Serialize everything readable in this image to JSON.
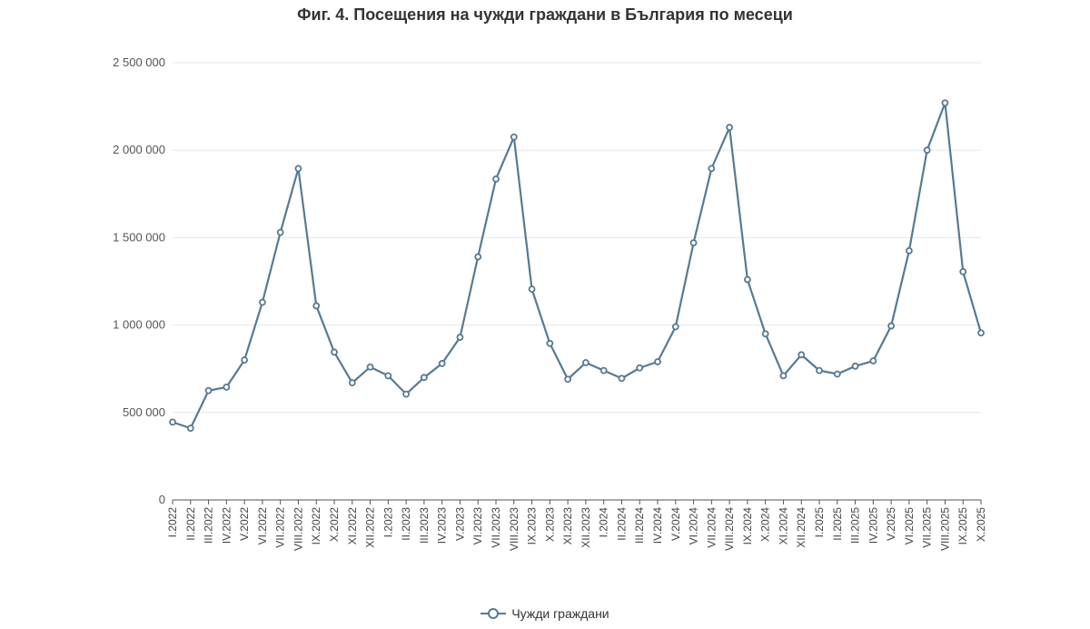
{
  "title": "Фиг. 4. Посещения на чужди граждани в България по месеци",
  "colors": {
    "series": "#577a93",
    "grid": "#e3e7ec",
    "axis": "#555555"
  },
  "chart_data": {
    "type": "line",
    "title": "Фиг. 4. Посещения на чужди граждани в България по месеци",
    "xlabel": "",
    "ylabel": "",
    "ylim": [
      0,
      2500000
    ],
    "yticks": [
      0,
      500000,
      1000000,
      1500000,
      2000000,
      2500000
    ],
    "ytick_labels": [
      "0",
      "500 000",
      "1 000 000",
      "1 500 000",
      "2 000 000",
      "2 500 000"
    ],
    "grid": true,
    "legend_position": "bottom-center",
    "categories": [
      "I.2022",
      "II.2022",
      "III.2022",
      "IV.2022",
      "V.2022",
      "VI.2022",
      "VII.2022",
      "VIII.2022",
      "IX.2022",
      "X.2022",
      "XI.2022",
      "XII.2022",
      "I.2023",
      "II.2023",
      "III.2023",
      "IV.2023",
      "V.2023",
      "VI.2023",
      "VII.2023",
      "VIII.2023",
      "IX.2023",
      "X.2023",
      "XI.2023",
      "XII.2023",
      "I.2024",
      "II.2024",
      "III.2024",
      "IV.2024",
      "V.2024",
      "VI.2024",
      "VII.2024",
      "VIII.2024",
      "IX.2024",
      "X.2024",
      "XI.2024",
      "XII.2024",
      "I.2025",
      "II.2025",
      "III.2025",
      "IV.2025",
      "V.2025",
      "VI.2025",
      "VII.2025",
      "VIII.2025",
      "IX.2025",
      "X.2025"
    ],
    "series": [
      {
        "name": "Чужди граждани",
        "values": [
          445000,
          410000,
          625000,
          645000,
          800000,
          1130000,
          1530000,
          1895000,
          1110000,
          845000,
          670000,
          760000,
          710000,
          605000,
          700000,
          780000,
          930000,
          1390000,
          1835000,
          2075000,
          1205000,
          895000,
          690000,
          785000,
          740000,
          695000,
          755000,
          790000,
          990000,
          1470000,
          1895000,
          2130000,
          1260000,
          950000,
          710000,
          830000,
          740000,
          720000,
          765000,
          795000,
          995000,
          1425000,
          2000000,
          2270000,
          1305000,
          955000
        ]
      }
    ]
  }
}
